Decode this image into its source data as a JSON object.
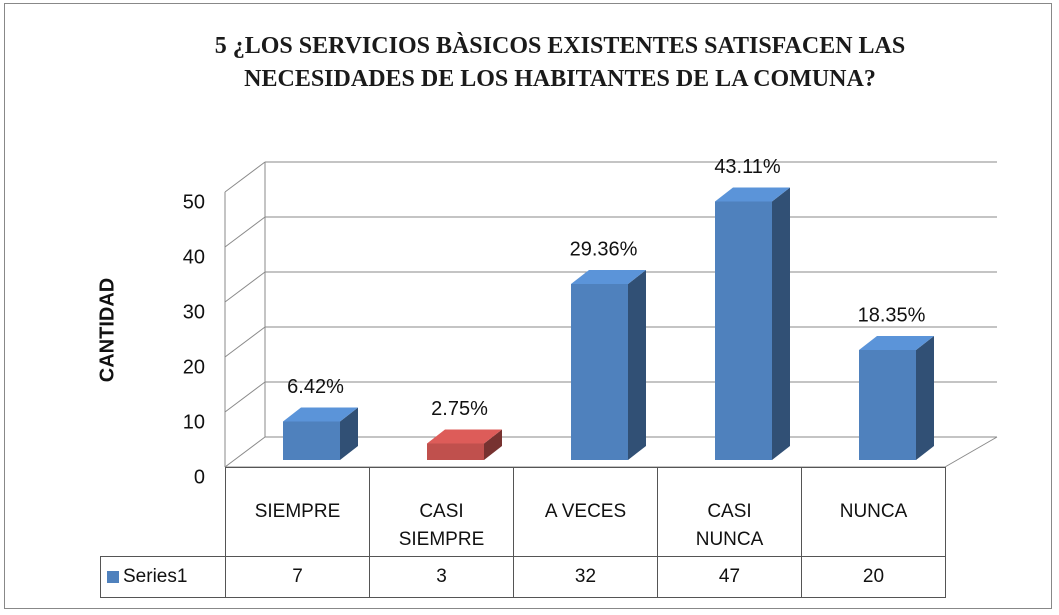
{
  "chart_data": {
    "type": "bar3d",
    "title": "5 ¿LOS SERVICIOS  BÀSICOS  EXISTENTES SATISFACEN LAS NECESIDADES  DE LOS HABITANTES  DE LA COMUNA?",
    "y_label": "CANTIDAD",
    "categories": [
      "SIEMPRE",
      "CASI SIEMPRE",
      "A VECES",
      "CASI NUNCA",
      "NUNCA"
    ],
    "series": [
      {
        "name": "Series1",
        "color": "#4f81bd",
        "colors": [
          "#4f81bd",
          "#c0504d",
          "#4f81bd",
          "#4f81bd",
          "#4f81bd"
        ],
        "values": [
          7,
          3,
          32,
          47,
          20
        ]
      }
    ],
    "data_labels": {
      "values": [
        6.42,
        2.75,
        29.36,
        43.11,
        18.35
      ],
      "value_labels": [
        "6.42%",
        "2.75%",
        "29.36%",
        "43.11%",
        "18.35%"
      ]
    },
    "ylim": [
      0,
      50
    ],
    "yticks": [
      0,
      10,
      20,
      30,
      40,
      50
    ],
    "grid": true
  }
}
